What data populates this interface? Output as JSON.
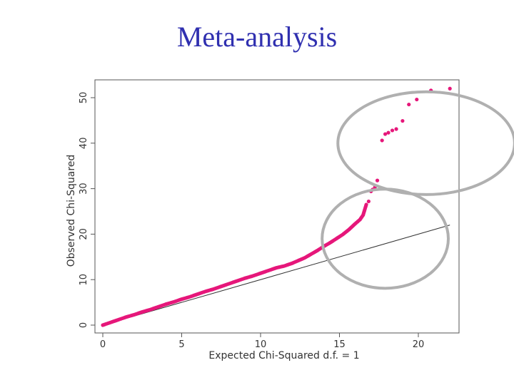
{
  "slide": {
    "title": "Meta-analysis"
  },
  "chart_data": {
    "type": "scatter",
    "title": "",
    "xlabel": "Expected Chi-Squared d.f. = 1",
    "ylabel": "Observed Chi-Squared",
    "xlim": [
      0,
      22.5
    ],
    "ylim": [
      0,
      52
    ],
    "xticks": [
      0,
      5,
      10,
      15,
      20
    ],
    "yticks": [
      0,
      10,
      20,
      30,
      40,
      50
    ],
    "grid": false,
    "colors": {
      "points": "#e6177a",
      "reference": "#333333",
      "highlight": "#b0b0b0"
    },
    "reference_line": {
      "x": [
        0,
        22
      ],
      "y": [
        0,
        22
      ]
    },
    "series": [
      {
        "name": "observed",
        "x": [
          0,
          0.5,
          1,
          1.5,
          2,
          2.5,
          3,
          3.5,
          4,
          4.5,
          5,
          5.5,
          6,
          6.5,
          7,
          7.5,
          8,
          8.5,
          9,
          9.5,
          10,
          10.5,
          11,
          11.5,
          12,
          12.4,
          12.8,
          13.2,
          13.6,
          14,
          14.4,
          14.8,
          15.2,
          15.6,
          16,
          16.3,
          16.5,
          16.7,
          16.85,
          17,
          17.1,
          17.25,
          17.4,
          17.7,
          17.9,
          18.1,
          18.35,
          18.6,
          19,
          19.4,
          19.9,
          20.8,
          22
        ],
        "y": [
          0,
          0.6,
          1.2,
          1.8,
          2.3,
          2.9,
          3.4,
          4,
          4.6,
          5.1,
          5.7,
          6.2,
          6.8,
          7.4,
          7.9,
          8.5,
          9.1,
          9.7,
          10.3,
          10.8,
          11.4,
          12,
          12.6,
          13,
          13.6,
          14.2,
          14.8,
          15.6,
          16.4,
          17.3,
          18.1,
          19,
          19.9,
          21,
          22.3,
          23.2,
          24.2,
          26.5,
          27.2,
          29.4,
          29.8,
          30.3,
          31.8,
          40.6,
          42,
          42.3,
          42.8,
          43.1,
          44.9,
          48.5,
          49.6,
          51.6,
          52
        ]
      }
    ],
    "highlights": [
      {
        "shape": "ellipse",
        "cx": 17.9,
        "cy": 19,
        "rx": 4.0,
        "ry": 10.9
      },
      {
        "shape": "ellipse",
        "cx": 20.5,
        "cy": 40,
        "rx": 5.6,
        "ry": 11.3
      }
    ]
  }
}
